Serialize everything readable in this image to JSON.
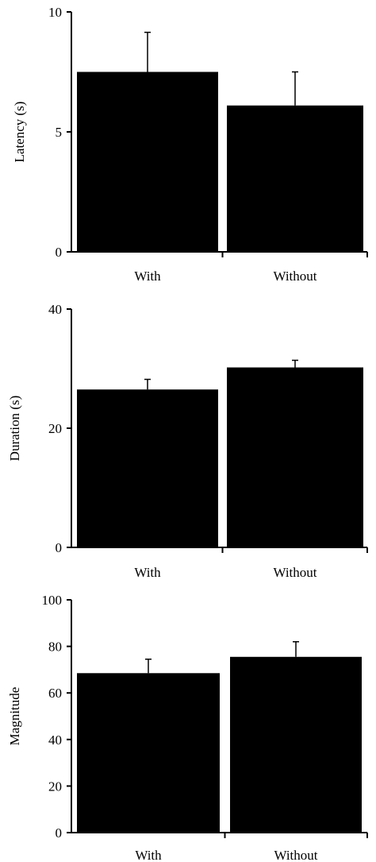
{
  "chart_data": [
    {
      "type": "bar",
      "categories": [
        "With",
        "Without"
      ],
      "values": [
        7.5,
        6.1
      ],
      "errors": [
        1.65,
        1.4
      ],
      "ylabel": "Latency (s)",
      "xlabel": "",
      "ylim": [
        0,
        10
      ],
      "yticks": [
        0,
        5,
        10
      ],
      "bar_color": "#000000",
      "grid": false
    },
    {
      "type": "bar",
      "categories": [
        "With",
        "Without"
      ],
      "values": [
        26.5,
        30.2
      ],
      "errors": [
        1.7,
        1.2
      ],
      "ylabel": "Duration (s)",
      "xlabel": "",
      "ylim": [
        0,
        40
      ],
      "yticks": [
        0,
        20,
        40
      ],
      "bar_color": "#000000",
      "grid": false
    },
    {
      "type": "bar",
      "categories": [
        "With",
        "Without"
      ],
      "values": [
        68.5,
        75.5
      ],
      "errors": [
        6.0,
        6.5
      ],
      "ylabel": "Magnitude",
      "xlabel": "",
      "ylim": [
        0,
        100
      ],
      "yticks": [
        0,
        20,
        40,
        60,
        80,
        100
      ],
      "bar_color": "#000000",
      "grid": false
    }
  ]
}
